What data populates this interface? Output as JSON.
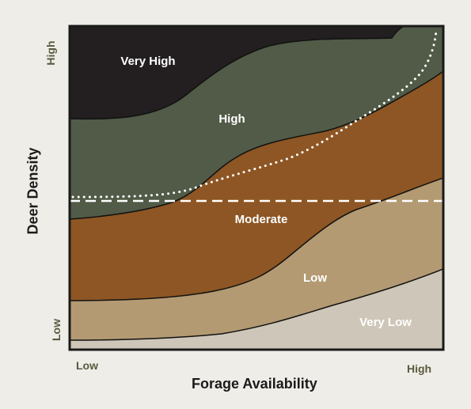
{
  "axes": {
    "x_title": "Forage Availability",
    "y_title": "Deer Density",
    "x_low": "Low",
    "x_high": "High",
    "y_low": "Low",
    "y_high": "High"
  },
  "zones": {
    "very_high": "Very High",
    "high": "High",
    "moderate": "Moderate",
    "low": "Low",
    "very_low": "Very Low"
  },
  "colors": {
    "very_high": "#231f20",
    "high": "#515b47",
    "moderate": "#8d5624",
    "low": "#b39a72",
    "very_low": "#cec6b8",
    "background": "#efede7",
    "reference_lines": "#ffffff"
  }
}
